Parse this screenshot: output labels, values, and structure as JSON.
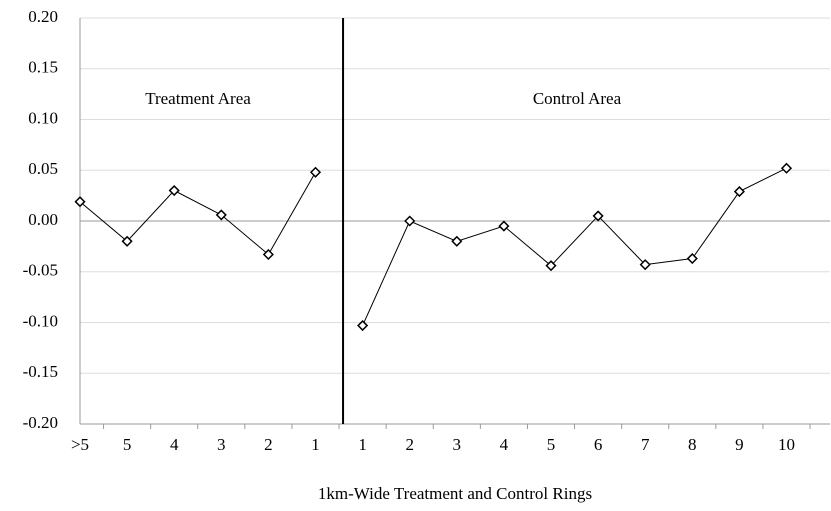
{
  "chart_data": {
    "type": "line",
    "categories": [
      ">5",
      "5",
      "4",
      "3",
      "2",
      "1",
      "1",
      "2",
      "3",
      "4",
      "5",
      "6",
      "7",
      "8",
      "9",
      "10"
    ],
    "series": [
      {
        "color": "#000000",
        "values": [
          0.019,
          -0.02,
          0.03,
          0.006,
          -0.033,
          0.048,
          null,
          null,
          null,
          null,
          null,
          null,
          null,
          null,
          null,
          null
        ]
      },
      {
        "color": "#000000",
        "values": [
          null,
          null,
          null,
          null,
          null,
          null,
          -0.103,
          0.0,
          -0.02,
          -0.005,
          -0.044,
          0.005,
          -0.043,
          -0.037,
          0.029,
          0.052
        ]
      }
    ],
    "ylim": [
      -0.2,
      0.2
    ],
    "yticks": [
      {
        "value": -0.2,
        "label": "-0.20"
      },
      {
        "value": -0.15,
        "label": "-0.15"
      },
      {
        "value": -0.1,
        "label": "-0.10"
      },
      {
        "value": -0.05,
        "label": "-0.05"
      },
      {
        "value": 0,
        "label": "0.00"
      },
      {
        "value": 0.05,
        "label": "0.05"
      },
      {
        "value": 0.1,
        "label": "0.10"
      },
      {
        "value": 0.15,
        "label": "0.15"
      },
      {
        "value": 0.2,
        "label": "0.20"
      }
    ],
    "grid": true,
    "annotations": [
      "Treatment Area",
      "Control Area"
    ],
    "xlabel": "1km-Wide Treatment and Control Rings"
  }
}
